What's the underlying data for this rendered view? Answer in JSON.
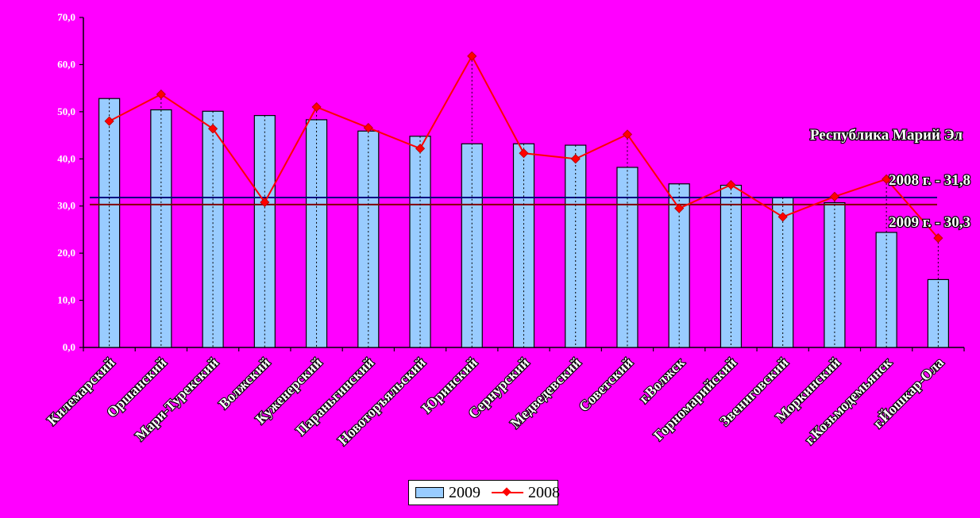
{
  "chart_data": {
    "type": "bar",
    "categories": [
      "Килемарский",
      "Оршанский",
      "Мари-Турекский",
      "Волжский",
      "Куженерский",
      "Параньгинский",
      "Новоторъяльский",
      "Юринский",
      "Сернурский",
      "Медведевский",
      "Советский",
      "г.Волжск",
      "Горномарийский",
      "Звениговский",
      "Моркинский",
      "г.Козьмодемьянск",
      "г.Йошкар-Ола"
    ],
    "series": [
      {
        "name": "2009",
        "type": "bar",
        "color": "#99ccff",
        "values": [
          52.8,
          50.4,
          50.1,
          49.2,
          48.3,
          45.9,
          44.8,
          43.2,
          43.2,
          42.9,
          38.2,
          34.7,
          34.4,
          31.8,
          30.7,
          24.4,
          14.4
        ]
      },
      {
        "name": "2008",
        "type": "line",
        "color": "#ff0000",
        "values": [
          48.0,
          53.7,
          46.4,
          30.8,
          51.0,
          46.6,
          42.2,
          61.8,
          41.2,
          40.0,
          45.2,
          29.5,
          34.5,
          27.7,
          32.0,
          35.7,
          23.2
        ]
      }
    ],
    "reference_lines": [
      {
        "label": "2008 г. - 31,8",
        "value": 31.8,
        "color": "#000080"
      },
      {
        "label": "2009 г. - 30,3",
        "value": 30.3,
        "color": "#800000"
      }
    ],
    "annotation": "Республика Марий Эл",
    "ylim": [
      0,
      70
    ],
    "yticks": [
      "0,0",
      "10,0",
      "20,0",
      "30,0",
      "40,0",
      "50,0",
      "60,0",
      "70,0"
    ],
    "legend": {
      "position": "bottom",
      "entries": [
        "2009",
        "2008"
      ]
    },
    "grid": false
  }
}
